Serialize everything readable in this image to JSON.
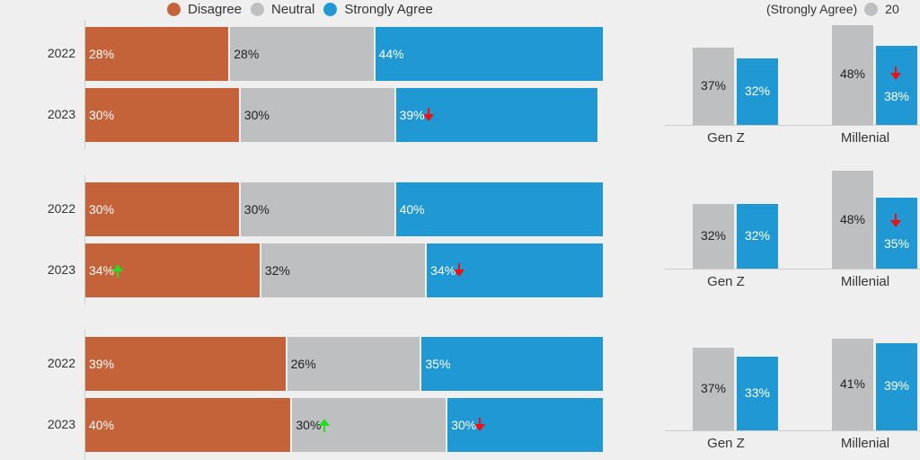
{
  "colors": {
    "disagree": "#c4623a",
    "neutral": "#bebfc1",
    "strongly_agree": "#1f98d4",
    "up": "#22dd22",
    "down": "#ee1111"
  },
  "legend": {
    "items": [
      "Disagree",
      "Neutral",
      "Strongly Agree"
    ]
  },
  "right_legend": {
    "title": "(Strongly Agree)",
    "item": "20"
  },
  "chart_data": [
    {
      "type": "bar",
      "orientation": "horizontal",
      "stacked": true,
      "categories": [
        "2022",
        "2023"
      ],
      "series": [
        {
          "name": "Disagree",
          "values": [
            28,
            30
          ],
          "labels": [
            "28%",
            "30%"
          ],
          "trend": [
            null,
            null
          ]
        },
        {
          "name": "Neutral",
          "values": [
            28,
            30
          ],
          "labels": [
            "28%",
            "30%"
          ],
          "trend": [
            null,
            null
          ]
        },
        {
          "name": "Strongly Agree",
          "values": [
            44,
            39
          ],
          "labels": [
            "44%",
            "39%"
          ],
          "trend": [
            null,
            "down"
          ]
        }
      ]
    },
    {
      "type": "bar",
      "orientation": "horizontal",
      "stacked": true,
      "categories": [
        "2022",
        "2023"
      ],
      "series": [
        {
          "name": "Disagree",
          "values": [
            30,
            34
          ],
          "labels": [
            "30%",
            "34%"
          ],
          "trend": [
            null,
            "up"
          ]
        },
        {
          "name": "Neutral",
          "values": [
            30,
            32
          ],
          "labels": [
            "30%",
            "32%"
          ],
          "trend": [
            null,
            null
          ]
        },
        {
          "name": "Strongly Agree",
          "values": [
            40,
            34
          ],
          "labels": [
            "40%",
            "34%"
          ],
          "trend": [
            null,
            "down"
          ]
        }
      ]
    },
    {
      "type": "bar",
      "orientation": "horizontal",
      "stacked": true,
      "categories": [
        "2022",
        "2023"
      ],
      "series": [
        {
          "name": "Disagree",
          "values": [
            39,
            40
          ],
          "labels": [
            "39%",
            "40%"
          ],
          "trend": [
            null,
            null
          ]
        },
        {
          "name": "Neutral",
          "values": [
            26,
            30
          ],
          "labels": [
            "26%",
            "30%"
          ],
          "trend": [
            null,
            "up"
          ]
        },
        {
          "name": "Strongly Agree",
          "values": [
            35,
            30
          ],
          "labels": [
            "35%",
            "30%"
          ],
          "trend": [
            null,
            "down"
          ]
        }
      ]
    },
    {
      "type": "bar",
      "categories": [
        "Gen Z",
        "Millenial"
      ],
      "ylim": [
        0,
        56
      ],
      "series": [
        {
          "values": [
            37,
            48
          ],
          "labels": [
            "37%",
            "48%"
          ],
          "trend": [
            null,
            null
          ]
        },
        {
          "values": [
            32,
            38
          ],
          "labels": [
            "32%",
            "38%"
          ],
          "trend": [
            null,
            "down"
          ]
        }
      ]
    },
    {
      "type": "bar",
      "categories": [
        "Gen Z",
        "Millenial"
      ],
      "ylim": [
        0,
        57.5
      ],
      "series": [
        {
          "values": [
            32,
            48
          ],
          "labels": [
            "32%",
            "48%"
          ],
          "trend": [
            null,
            null
          ]
        },
        {
          "values": [
            32,
            35
          ],
          "labels": [
            "32%",
            "35%"
          ],
          "trend": [
            null,
            "down"
          ]
        }
      ]
    },
    {
      "type": "bar",
      "categories": [
        "Gen Z",
        "Millenial"
      ],
      "ylim": [
        0,
        52
      ],
      "series": [
        {
          "values": [
            37,
            41
          ],
          "labels": [
            "37%",
            "41%"
          ],
          "trend": [
            null,
            null
          ]
        },
        {
          "values": [
            33,
            39
          ],
          "labels": [
            "33%",
            "39%"
          ],
          "trend": [
            null,
            null
          ]
        }
      ]
    }
  ]
}
